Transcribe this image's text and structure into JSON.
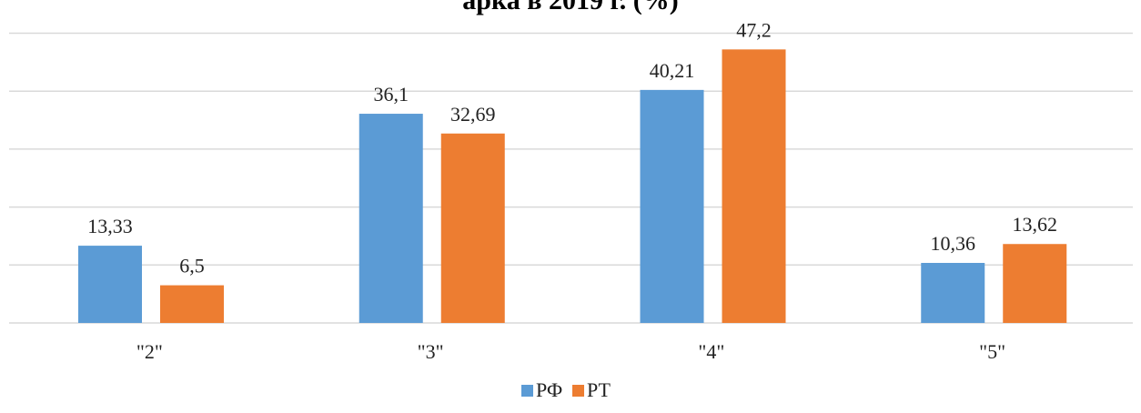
{
  "chart_data": {
    "type": "bar",
    "title": "",
    "title_partial_visible": "арка в 2019 г. (%)",
    "categories": [
      "\"2\"",
      "\"3\"",
      "\"4\"",
      "\"5\""
    ],
    "series": [
      {
        "name": "РФ",
        "color": "#5b9bd5",
        "values": [
          13.33,
          36.1,
          40.21,
          10.36
        ],
        "labels": [
          "13,33",
          "36,1",
          "40,21",
          "10,36"
        ]
      },
      {
        "name": "РТ",
        "color": "#ed7d31",
        "values": [
          6.5,
          32.69,
          47.2,
          13.62
        ],
        "labels": [
          "6,5",
          "32,69",
          "47,2",
          "13,62"
        ]
      }
    ],
    "xlabel": "",
    "ylabel": "",
    "ylim": [
      0,
      50
    ],
    "ytick_step": 10,
    "grid": true,
    "legend_position": "bottom"
  }
}
